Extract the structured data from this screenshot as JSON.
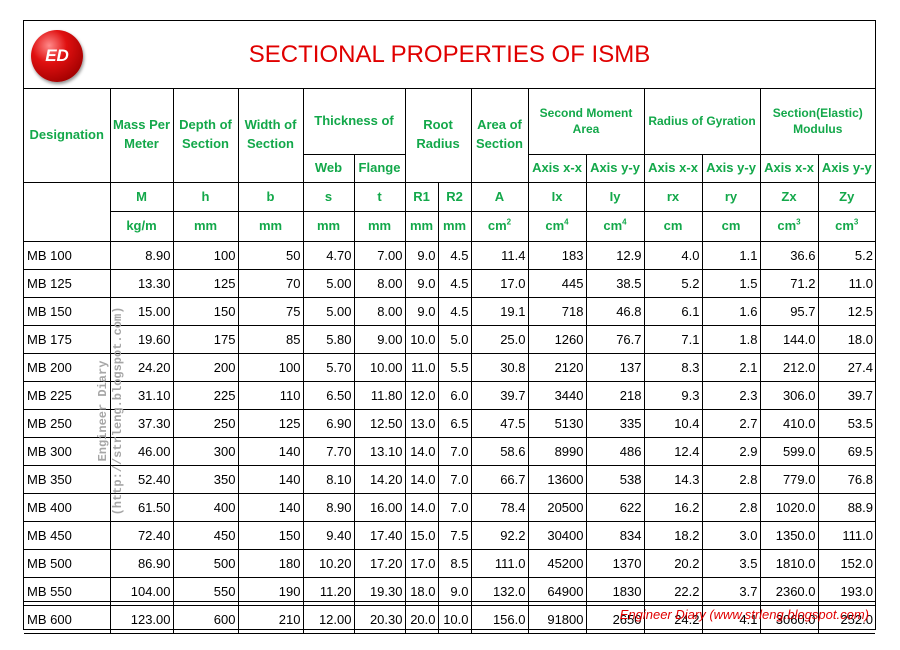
{
  "logo": {
    "text": "ED"
  },
  "title": "SECTIONAL PROPERTIES OF ISMB",
  "headers": {
    "designation": "Designation",
    "mass": "Mass Per Meter",
    "depth": "Depth of Section",
    "width": "Width of Section",
    "thickness": "Thickness of",
    "root_radius": "Root Radius",
    "area": "Area of Section",
    "second_moment": "Second Moment Area",
    "radius_gyration": "Radius of Gyration",
    "section_modulus": "Section(Elastic) Modulus",
    "web": "Web",
    "flange": "Flange",
    "axis_xx_1": "Axis x-x",
    "axis_yy_1": "Axis y-y",
    "axis_xx_2": "Axis x-x",
    "axis_yy_2": "Axis y-y",
    "axis_xx_3": "Axis x-x",
    "axis_yy_3": "Axis y-y"
  },
  "symbols": [
    "M",
    "h",
    "b",
    "s",
    "t",
    "R1",
    "R2",
    "A",
    "Ix",
    "Iy",
    "rx",
    "ry",
    "Zx",
    "Zy"
  ],
  "units": [
    {
      "base": "kg/m",
      "exp": ""
    },
    {
      "base": "mm",
      "exp": ""
    },
    {
      "base": "mm",
      "exp": ""
    },
    {
      "base": "mm",
      "exp": ""
    },
    {
      "base": "mm",
      "exp": ""
    },
    {
      "base": "mm",
      "exp": ""
    },
    {
      "base": "mm",
      "exp": ""
    },
    {
      "base": "cm",
      "exp": "2"
    },
    {
      "base": "cm",
      "exp": "4"
    },
    {
      "base": "cm",
      "exp": "4"
    },
    {
      "base": "cm",
      "exp": ""
    },
    {
      "base": "cm",
      "exp": ""
    },
    {
      "base": "cm",
      "exp": "3"
    },
    {
      "base": "cm",
      "exp": "3"
    }
  ],
  "rows": [
    [
      "MB 100",
      "8.90",
      "100",
      "50",
      "4.70",
      "7.00",
      "9.0",
      "4.5",
      "11.4",
      "183",
      "12.9",
      "4.0",
      "1.1",
      "36.6",
      "5.2"
    ],
    [
      "MB 125",
      "13.30",
      "125",
      "70",
      "5.00",
      "8.00",
      "9.0",
      "4.5",
      "17.0",
      "445",
      "38.5",
      "5.2",
      "1.5",
      "71.2",
      "11.0"
    ],
    [
      "MB 150",
      "15.00",
      "150",
      "75",
      "5.00",
      "8.00",
      "9.0",
      "4.5",
      "19.1",
      "718",
      "46.8",
      "6.1",
      "1.6",
      "95.7",
      "12.5"
    ],
    [
      "MB 175",
      "19.60",
      "175",
      "85",
      "5.80",
      "9.00",
      "10.0",
      "5.0",
      "25.0",
      "1260",
      "76.7",
      "7.1",
      "1.8",
      "144.0",
      "18.0"
    ],
    [
      "MB 200",
      "24.20",
      "200",
      "100",
      "5.70",
      "10.00",
      "11.0",
      "5.5",
      "30.8",
      "2120",
      "137",
      "8.3",
      "2.1",
      "212.0",
      "27.4"
    ],
    [
      "MB 225",
      "31.10",
      "225",
      "110",
      "6.50",
      "11.80",
      "12.0",
      "6.0",
      "39.7",
      "3440",
      "218",
      "9.3",
      "2.3",
      "306.0",
      "39.7"
    ],
    [
      "MB 250",
      "37.30",
      "250",
      "125",
      "6.90",
      "12.50",
      "13.0",
      "6.5",
      "47.5",
      "5130",
      "335",
      "10.4",
      "2.7",
      "410.0",
      "53.5"
    ],
    [
      "MB 300",
      "46.00",
      "300",
      "140",
      "7.70",
      "13.10",
      "14.0",
      "7.0",
      "58.6",
      "8990",
      "486",
      "12.4",
      "2.9",
      "599.0",
      "69.5"
    ],
    [
      "MB 350",
      "52.40",
      "350",
      "140",
      "8.10",
      "14.20",
      "14.0",
      "7.0",
      "66.7",
      "13600",
      "538",
      "14.3",
      "2.8",
      "779.0",
      "76.8"
    ],
    [
      "MB 400",
      "61.50",
      "400",
      "140",
      "8.90",
      "16.00",
      "14.0",
      "7.0",
      "78.4",
      "20500",
      "622",
      "16.2",
      "2.8",
      "1020.0",
      "88.9"
    ],
    [
      "MB 450",
      "72.40",
      "450",
      "150",
      "9.40",
      "17.40",
      "15.0",
      "7.5",
      "92.2",
      "30400",
      "834",
      "18.2",
      "3.0",
      "1350.0",
      "111.0"
    ],
    [
      "MB 500",
      "86.90",
      "500",
      "180",
      "10.20",
      "17.20",
      "17.0",
      "8.5",
      "111.0",
      "45200",
      "1370",
      "20.2",
      "3.5",
      "1810.0",
      "152.0"
    ],
    [
      "MB 550",
      "104.00",
      "550",
      "190",
      "11.20",
      "19.30",
      "18.0",
      "9.0",
      "132.0",
      "64900",
      "1830",
      "22.2",
      "3.7",
      "2360.0",
      "193.0"
    ],
    [
      "MB 600",
      "123.00",
      "600",
      "210",
      "12.00",
      "20.30",
      "20.0",
      "10.0",
      "156.0",
      "91800",
      "2650",
      "24.2",
      "4.1",
      "3060.0",
      "252.0"
    ]
  ],
  "watermark": {
    "line1": "Engineer Diary",
    "line2": "(http://strleng.blogspot.com)"
  },
  "footer": "Engineer Diary (www.strleng.blogspot.com)"
}
